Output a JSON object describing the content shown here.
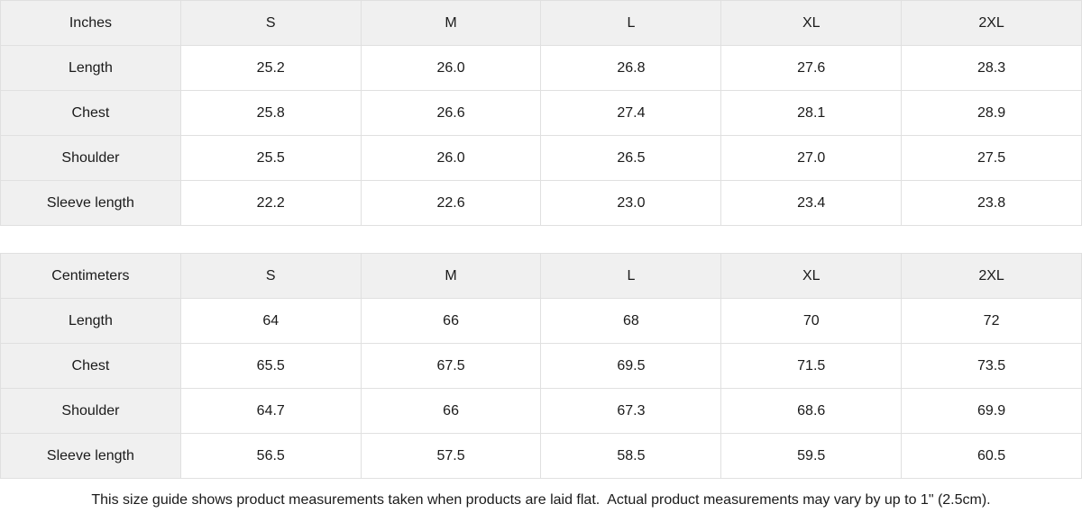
{
  "colors": {
    "header_bg": "#f0f0f0",
    "border": "#e0e0e0",
    "text": "#1a1a1a",
    "background": "#ffffff"
  },
  "tables": [
    {
      "unit_label": "Inches",
      "columns": [
        "S",
        "M",
        "L",
        "XL",
        "2XL"
      ],
      "rows": [
        {
          "label": "Length",
          "values": [
            "25.2",
            "26.0",
            "26.8",
            "27.6",
            "28.3"
          ]
        },
        {
          "label": "Chest",
          "values": [
            "25.8",
            "26.6",
            "27.4",
            "28.1",
            "28.9"
          ]
        },
        {
          "label": "Shoulder",
          "values": [
            "25.5",
            "26.0",
            "26.5",
            "27.0",
            "27.5"
          ]
        },
        {
          "label": "Sleeve length",
          "values": [
            "22.2",
            "22.6",
            "23.0",
            "23.4",
            "23.8"
          ]
        }
      ]
    },
    {
      "unit_label": "Centimeters",
      "columns": [
        "S",
        "M",
        "L",
        "XL",
        "2XL"
      ],
      "rows": [
        {
          "label": "Length",
          "values": [
            "64",
            "66",
            "68",
            "70",
            "72"
          ]
        },
        {
          "label": "Chest",
          "values": [
            "65.5",
            "67.5",
            "69.5",
            "71.5",
            "73.5"
          ]
        },
        {
          "label": "Shoulder",
          "values": [
            "64.7",
            "66",
            "67.3",
            "68.6",
            "69.9"
          ]
        },
        {
          "label": "Sleeve length",
          "values": [
            "56.5",
            "57.5",
            "58.5",
            "59.5",
            "60.5"
          ]
        }
      ]
    }
  ],
  "footer": {
    "note": "This size guide shows product measurements taken when products are laid flat.  Actual product measurements may vary by up to 1\" (2.5cm)."
  }
}
